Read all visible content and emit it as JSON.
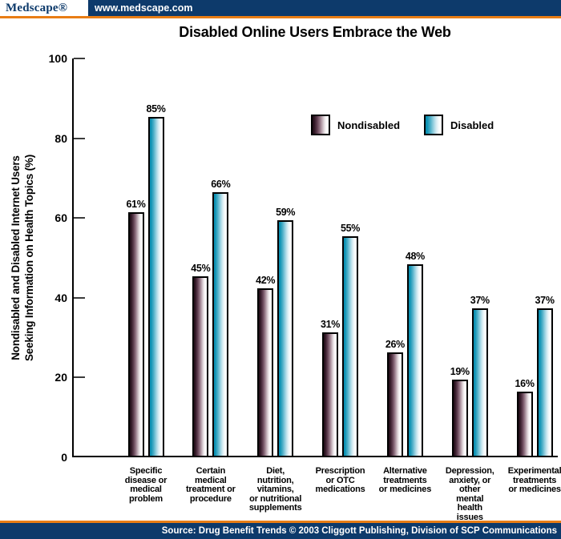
{
  "header": {
    "logo": "Medscape®",
    "url": "www.medscape.com"
  },
  "footer": {
    "source": "Source: Drug Benefit Trends © 2003 Cliggott Publishing, Division of SCP Communications"
  },
  "colors": {
    "navy": "#0d3a6b",
    "orange": "#e87d15",
    "nondisabled_dark": "#1e0c16",
    "disabled_dark": "#0e93b4",
    "axis": "#000000"
  },
  "chart_data": {
    "type": "bar",
    "title": "Disabled Online Users Embrace the Web",
    "categories": [
      "Specific disease or medical problem",
      "Certain medical treatment or procedure",
      "Diet, nutrition, vitamins, or nutritional supplements",
      "Prescription or OTC medications",
      "Alternative treatments or medicines",
      "Depression, anxiety, or other mental health issues",
      "Experimental treatments or medicines"
    ],
    "category_lines": [
      [
        "Specific",
        "disease or",
        "medical",
        "problem"
      ],
      [
        "Certain",
        "medical",
        "treatment or",
        "procedure"
      ],
      [
        "Diet,",
        "nutrition,",
        "vitamins,",
        "or nutritional",
        "supplements"
      ],
      [
        "Prescription",
        "or OTC",
        "medications"
      ],
      [
        "Alternative",
        "treatments",
        "or medicines"
      ],
      [
        "Depression,",
        "anxiety, or",
        "other",
        "mental",
        "health",
        "issues"
      ],
      [
        "Experimental",
        "treatments",
        "or medicines"
      ]
    ],
    "series": [
      {
        "name": "Nondisabled",
        "values": [
          61,
          45,
          42,
          31,
          26,
          19,
          16
        ]
      },
      {
        "name": "Disabled",
        "values": [
          85,
          66,
          59,
          55,
          48,
          37,
          37
        ]
      }
    ],
    "value_label_suffix": "%",
    "xlabel": "",
    "ylabel": "Nondisabled and Disabled Internet Users Seeking Information on Health Topics (%)",
    "ylabel_lines": [
      "Nondisabled and Disabled Internet Users",
      "Seeking Information on Health Topics (%)"
    ],
    "ylim": [
      0,
      100
    ],
    "yticks": [
      0,
      20,
      40,
      60,
      80,
      100
    ],
    "grid": false,
    "legend_position": "inside-top-right"
  }
}
